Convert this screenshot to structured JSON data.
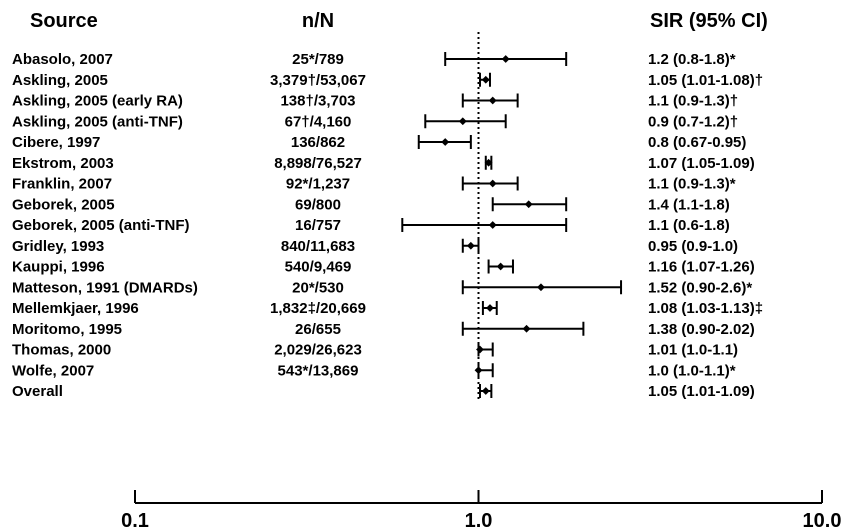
{
  "chart_data": {
    "type": "forest",
    "headers": {
      "source": "Source",
      "n": "n/N",
      "sir": "SIR (95% CI)"
    },
    "xscale": "log",
    "xlim": [
      0.1,
      10.0
    ],
    "ticks": [
      "0.1",
      "1.0",
      "10.0"
    ],
    "tick_values": [
      0.1,
      1.0,
      10.0
    ],
    "reference_line": 1.0,
    "rows": [
      {
        "source": "Abasolo, 2007",
        "n": "25*/789",
        "sir_text": "1.2 (0.8-1.8)*",
        "est": 1.2,
        "low": 0.8,
        "high": 1.8
      },
      {
        "source": "Askling, 2005",
        "n": "3,379†/53,067",
        "sir_text": "1.05 (1.01-1.08)†",
        "est": 1.05,
        "low": 1.01,
        "high": 1.08
      },
      {
        "source": "Askling, 2005 (early RA)",
        "n": "138†/3,703",
        "sir_text": "1.1 (0.9-1.3)†",
        "est": 1.1,
        "low": 0.9,
        "high": 1.3
      },
      {
        "source": "Askling, 2005 (anti-TNF)",
        "n": "67†/4,160",
        "sir_text": "0.9 (0.7-1.2)†",
        "est": 0.9,
        "low": 0.7,
        "high": 1.2
      },
      {
        "source": "Cibere, 1997",
        "n": "136/862",
        "sir_text": "0.8 (0.67-0.95)",
        "est": 0.8,
        "low": 0.67,
        "high": 0.95
      },
      {
        "source": "Ekstrom, 2003",
        "n": "8,898/76,527",
        "sir_text": "1.07 (1.05-1.09)",
        "est": 1.07,
        "low": 1.05,
        "high": 1.09
      },
      {
        "source": "Franklin, 2007",
        "n": "92*/1,237",
        "sir_text": "1.1 (0.9-1.3)*",
        "est": 1.1,
        "low": 0.9,
        "high": 1.3
      },
      {
        "source": "Geborek, 2005",
        "n": "69/800",
        "sir_text": "1.4 (1.1-1.8)",
        "est": 1.4,
        "low": 1.1,
        "high": 1.8
      },
      {
        "source": "Geborek, 2005 (anti-TNF)",
        "n": "16/757",
        "sir_text": "1.1 (0.6-1.8)",
        "est": 1.1,
        "low": 0.6,
        "high": 1.8
      },
      {
        "source": "Gridley, 1993",
        "n": "840/11,683",
        "sir_text": "0.95 (0.9-1.0)",
        "est": 0.95,
        "low": 0.9,
        "high": 1.0
      },
      {
        "source": "Kauppi, 1996",
        "n": "540/9,469",
        "sir_text": "1.16 (1.07-1.26)",
        "est": 1.16,
        "low": 1.07,
        "high": 1.26
      },
      {
        "source": "Matteson, 1991 (DMARDs)",
        "n": "20*/530",
        "sir_text": "1.52 (0.90-2.6)*",
        "est": 1.52,
        "low": 0.9,
        "high": 2.6
      },
      {
        "source": "Mellemkjaer, 1996",
        "n": "1,832‡/20,669",
        "sir_text": "1.08 (1.03-1.13)‡",
        "est": 1.08,
        "low": 1.03,
        "high": 1.13
      },
      {
        "source": "Moritomo, 1995",
        "n": "26/655",
        "sir_text": "1.38 (0.90-2.02)",
        "est": 1.38,
        "low": 0.9,
        "high": 2.02
      },
      {
        "source": "Thomas, 2000",
        "n": "2,029/26,623",
        "sir_text": "1.01 (1.0-1.1)",
        "est": 1.01,
        "low": 1.0,
        "high": 1.1
      },
      {
        "source": "Wolfe, 2007",
        "n": "543*/13,869",
        "sir_text": "1.0 (1.0-1.1)*",
        "est": 1.0,
        "low": 1.0,
        "high": 1.1
      },
      {
        "source": "Overall",
        "n": "",
        "sir_text": "1.05 (1.01-1.09)",
        "est": 1.05,
        "low": 1.01,
        "high": 1.09
      }
    ]
  }
}
